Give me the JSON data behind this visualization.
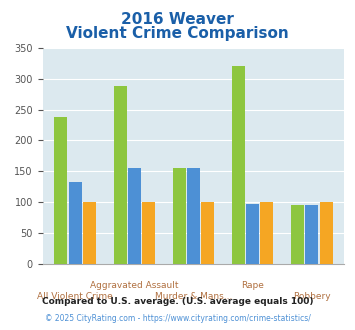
{
  "title_line1": "2016 Weaver",
  "title_line2": "Violent Crime Comparison",
  "categories": [
    "All Violent Crime",
    "Aggravated Assault",
    "Murder & Mans...",
    "Rape",
    "Robbery"
  ],
  "cat_line1": [
    "",
    "Aggravated Assault",
    "",
    "Rape",
    ""
  ],
  "cat_line2": [
    "All Violent Crime",
    "",
    "Murder & Mans...",
    "",
    "Robbery"
  ],
  "weaver": [
    238,
    288,
    155,
    320,
    95
  ],
  "alabama": [
    133,
    155,
    155,
    97,
    95
  ],
  "national": [
    100,
    100,
    100,
    100,
    100
  ],
  "color_weaver": "#8dc63f",
  "color_alabama": "#4d90d5",
  "color_national": "#f5a623",
  "ylim": [
    0,
    350
  ],
  "yticks": [
    0,
    50,
    100,
    150,
    200,
    250,
    300,
    350
  ],
  "bg_color": "#dce9ef",
  "title_color": "#1a5fa8",
  "xlabel_color": "#b07040",
  "legend_label_color": "#333333",
  "footnote1": "Compared to U.S. average. (U.S. average equals 100)",
  "footnote2": "© 2025 CityRating.com - https://www.cityrating.com/crime-statistics/",
  "footnote1_color": "#222222",
  "footnote2_color": "#4d90d5"
}
